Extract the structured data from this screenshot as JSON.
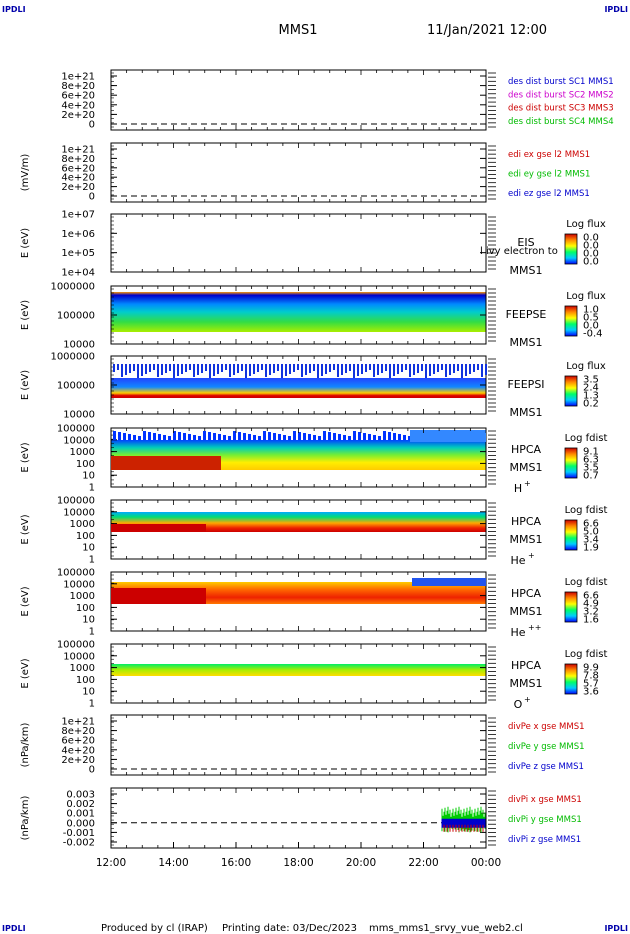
{
  "corner_marks": {
    "tl": "IPDLI",
    "tr": "IPDLI",
    "bl": "IPDLI",
    "br": "IPDLI"
  },
  "header": {
    "spacecraft": "MMS1",
    "datetime": "11/Jan/2021 12:00"
  },
  "footer": {
    "produced_by": "Produced by cl (IRAP)",
    "printing_date": "Printing date: 03/Dec/2023",
    "script": "mms_mms1_srvy_vue_web2.cl"
  },
  "colors": {
    "blue": "#0000cc",
    "magenta": "#cc00cc",
    "red": "#cc0000",
    "green": "#00bb00"
  },
  "chart_data": [
    {
      "type": "line",
      "id": "des",
      "ytick_labels": [
        "1e+21",
        "8e+20",
        "6e+20",
        "4e+20",
        "2e+20",
        "0"
      ],
      "ylabel": "",
      "legend": [
        {
          "text": "des dist burst SC1 MMS1",
          "color": "#0000cc"
        },
        {
          "text": "des dist burst SC2 MMS2",
          "color": "#cc00cc"
        },
        {
          "text": "des dist burst SC3 MMS3",
          "color": "#cc0000"
        },
        {
          "text": "des dist burst SC4 MMS4",
          "color": "#00bb00"
        }
      ]
    },
    {
      "type": "line",
      "id": "edi",
      "ytick_labels": [
        "1e+21",
        "8e+20",
        "6e+20",
        "4e+20",
        "2e+20",
        "0"
      ],
      "ylabel": "(mV/m)",
      "legend": [
        {
          "text": "edi ex gse l2 MMS1",
          "color": "#cc0000"
        },
        {
          "text": "edi ey gse l2 MMS1",
          "color": "#00bb00"
        },
        {
          "text": "edi ez gse l2 MMS1",
          "color": "#0000cc"
        }
      ]
    },
    {
      "type": "heatmap",
      "id": "eis",
      "ytick_labels": [
        "1e+07",
        "1e+06",
        "1e+05",
        "1e+04"
      ],
      "ylabel": "E (eV)",
      "instrument": [
        "EIS",
        "MMS1"
      ],
      "overlay_text": "l ivy electron to",
      "colorbar": {
        "title": "Log flux",
        "ticks": [
          "0.0",
          "0.0",
          "0.0",
          "0.0"
        ]
      }
    },
    {
      "type": "heatmap",
      "id": "feepse",
      "ytick_labels": [
        "1000000",
        "100000",
        "10000"
      ],
      "ylabel": "E (eV)",
      "instrument": [
        "FEEPSE",
        "MMS1"
      ],
      "colorbar": {
        "title": "Log flux",
        "ticks": [
          "1.0",
          "0.5",
          "0.0",
          "-0.4"
        ]
      }
    },
    {
      "type": "heatmap",
      "id": "feepsi",
      "ytick_labels": [
        "1000000",
        "100000",
        "10000"
      ],
      "ylabel": "E (eV)",
      "instrument": [
        "FEEPSI",
        "MMS1"
      ],
      "colorbar": {
        "title": "Log flux",
        "ticks": [
          "3.5",
          "2.4",
          "1.3",
          "0.2"
        ]
      }
    },
    {
      "type": "heatmap",
      "id": "hpca_h",
      "ytick_labels": [
        "100000",
        "10000",
        "1000",
        "100",
        "10",
        "1"
      ],
      "ylabel": "E (eV)",
      "instrument": [
        "HPCA",
        "MMS1"
      ],
      "species": "H",
      "charge": "+",
      "colorbar": {
        "title": "Log fdist",
        "ticks": [
          "9.1",
          "6.3",
          "3.5",
          "0.7"
        ]
      }
    },
    {
      "type": "heatmap",
      "id": "hpca_he",
      "ytick_labels": [
        "100000",
        "10000",
        "1000",
        "100",
        "10",
        "1"
      ],
      "ylabel": "E (eV)",
      "instrument": [
        "HPCA",
        "MMS1"
      ],
      "species": "He",
      "charge": "+",
      "colorbar": {
        "title": "Log fdist",
        "ticks": [
          "6.6",
          "5.0",
          "3.4",
          "1.9"
        ]
      }
    },
    {
      "type": "heatmap",
      "id": "hpca_hepp",
      "ytick_labels": [
        "100000",
        "10000",
        "1000",
        "100",
        "10",
        "1"
      ],
      "ylabel": "E (eV)",
      "instrument": [
        "HPCA",
        "MMS1"
      ],
      "species": "He",
      "charge": "++",
      "colorbar": {
        "title": "Log fdist",
        "ticks": [
          "6.6",
          "4.9",
          "3.2",
          "1.6"
        ]
      }
    },
    {
      "type": "heatmap",
      "id": "hpca_o",
      "ytick_labels": [
        "100000",
        "10000",
        "1000",
        "100",
        "10",
        "1"
      ],
      "ylabel": "E (eV)",
      "instrument": [
        "HPCA",
        "MMS1"
      ],
      "species": "O",
      "charge": "+",
      "colorbar": {
        "title": "Log fdist",
        "ticks": [
          "9.9",
          "7.8",
          "5.7",
          "3.6"
        ]
      }
    },
    {
      "type": "line",
      "id": "divpe",
      "ytick_labels": [
        "1e+21",
        "8e+20",
        "6e+20",
        "4e+20",
        "2e+20",
        "0"
      ],
      "ylabel": "(nPa/km)",
      "legend": [
        {
          "text": "divPe x gse MMS1",
          "color": "#cc0000"
        },
        {
          "text": "divPe y gse MMS1",
          "color": "#00bb00"
        },
        {
          "text": "divPe z gse MMS1",
          "color": "#0000cc"
        }
      ]
    },
    {
      "type": "line",
      "id": "divpi",
      "ytick_labels": [
        "0.003",
        "0.002",
        "0.001",
        "0.000",
        "-0.001",
        "-0.002"
      ],
      "ylabel": "(nPa/km)",
      "legend": [
        {
          "text": "divPi x gse MMS1",
          "color": "#cc0000"
        },
        {
          "text": "divPi y gse MMS1",
          "color": "#00bb00"
        },
        {
          "text": "divPi z gse MMS1",
          "color": "#0000cc"
        }
      ],
      "data_window": [
        "22:35",
        "00:00"
      ]
    }
  ],
  "xaxis": {
    "ticks": [
      "12:00",
      "14:00",
      "16:00",
      "18:00",
      "20:00",
      "22:00",
      "00:00"
    ]
  }
}
